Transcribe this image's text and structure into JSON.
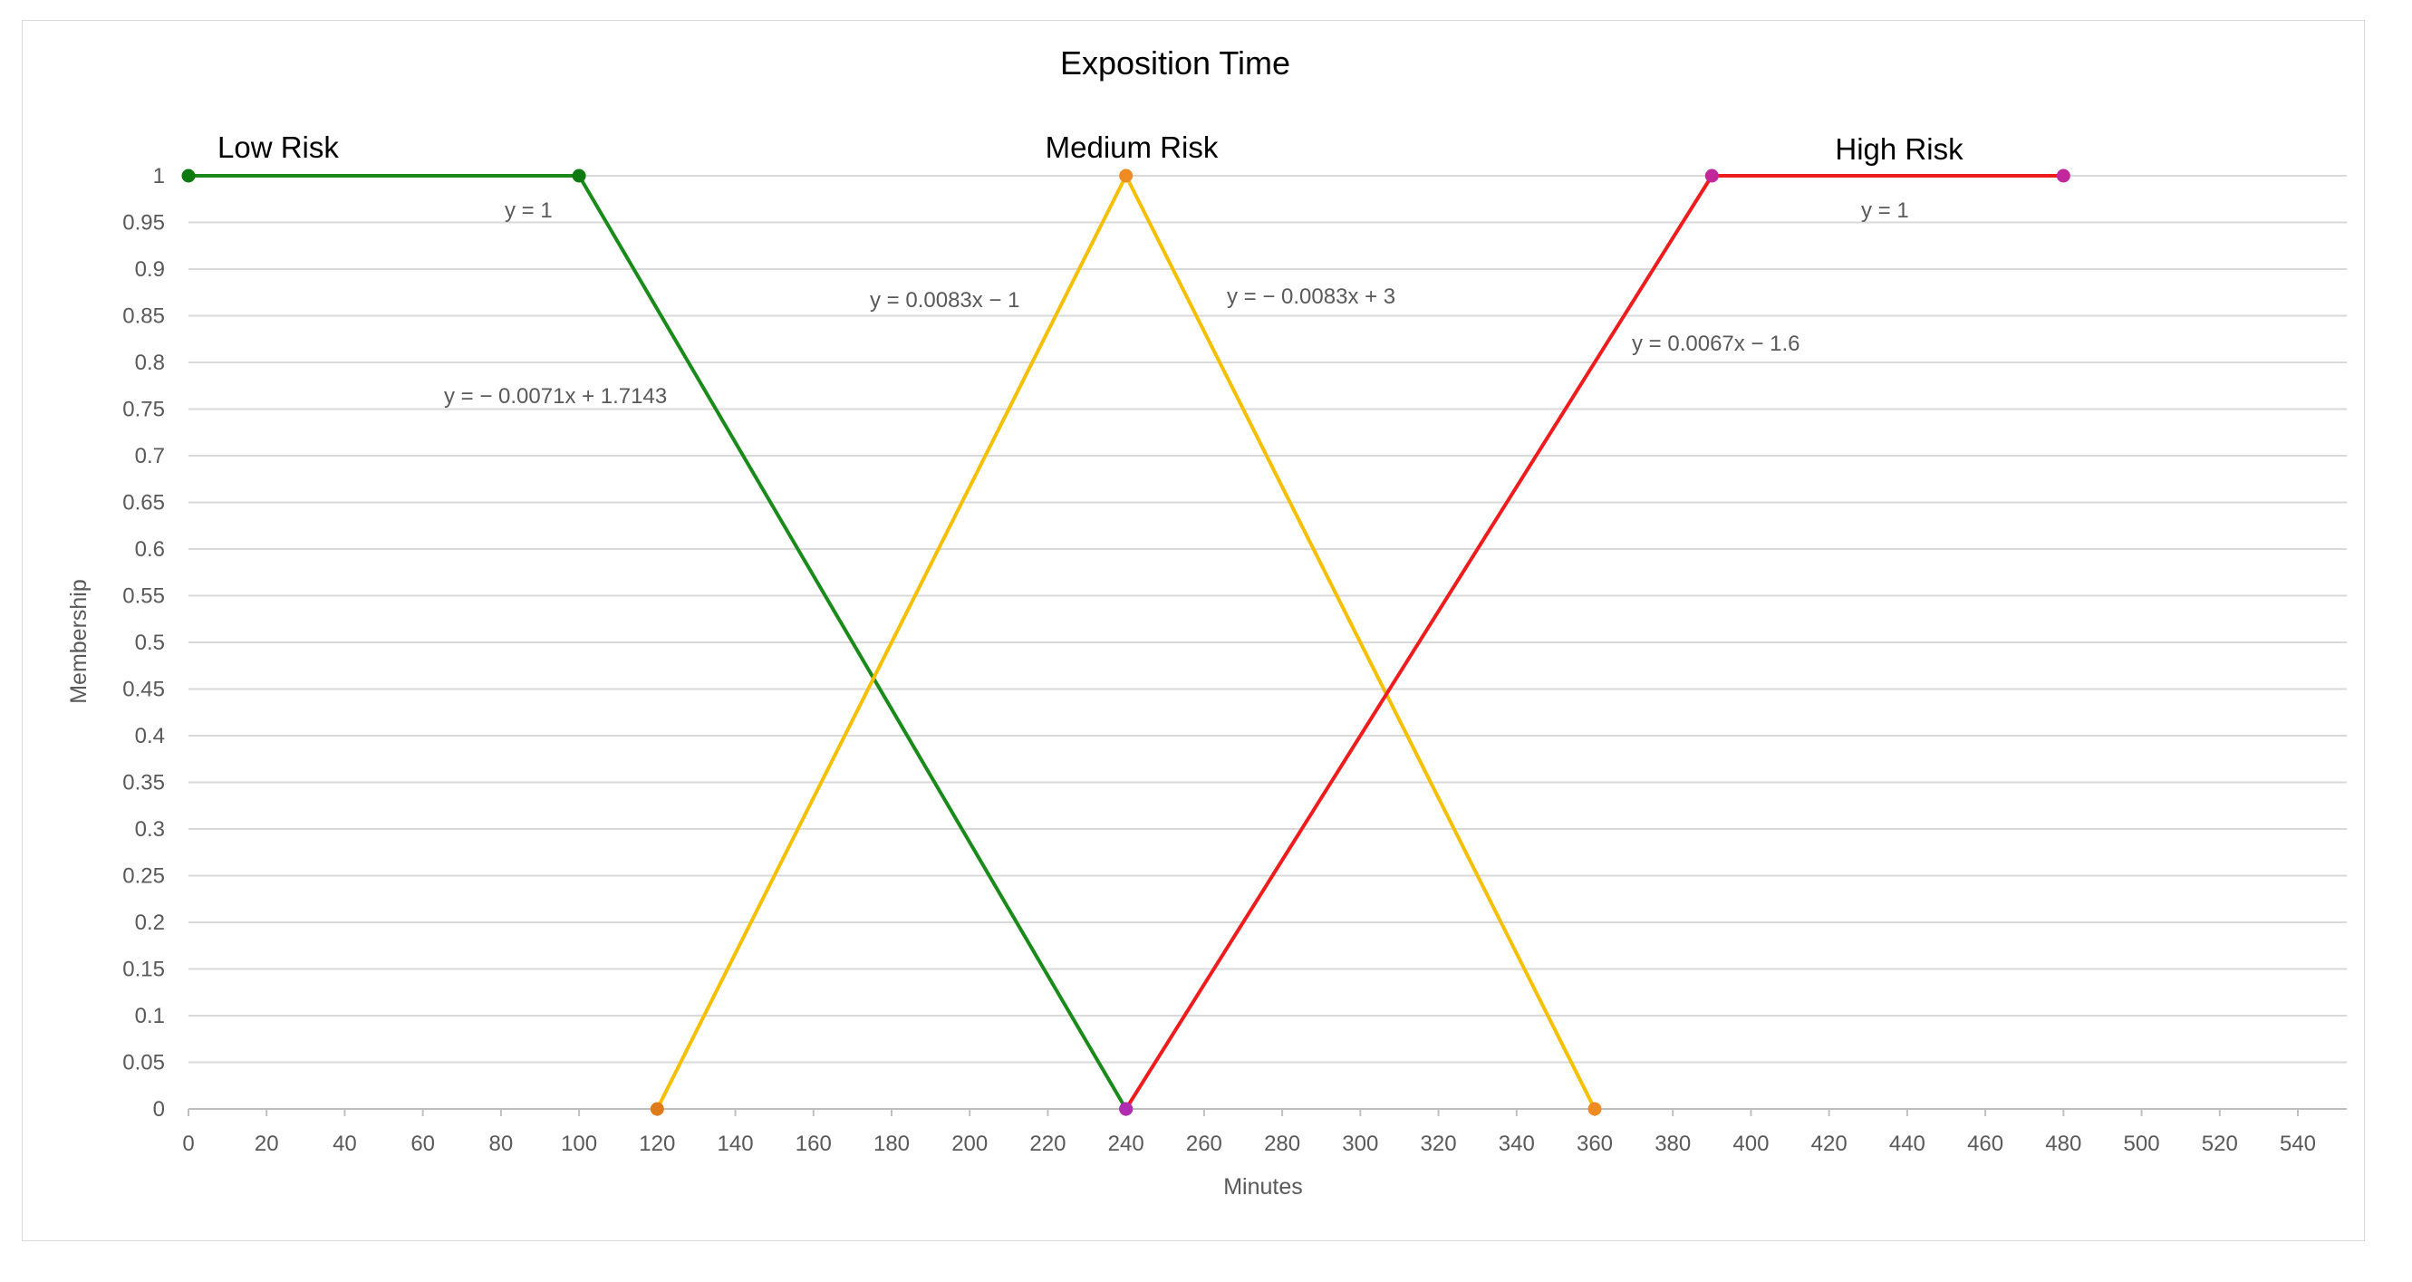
{
  "chart_data": {
    "type": "line",
    "title": "Exposition Time",
    "xlabel": "Minutes",
    "ylabel": "Membership",
    "xlim": [
      0,
      540
    ],
    "ylim": [
      0,
      1
    ],
    "x_ticks": [
      "0",
      "20",
      "40",
      "60",
      "80",
      "100",
      "120",
      "140",
      "160",
      "180",
      "200",
      "220",
      "240",
      "260",
      "280",
      "300",
      "320",
      "340",
      "360",
      "380",
      "400",
      "420",
      "440",
      "460",
      "480",
      "500",
      "520",
      "540"
    ],
    "y_ticks": [
      "0",
      "0.05",
      "0.1",
      "0.15",
      "0.2",
      "0.25",
      "0.3",
      "0.35",
      "0.4",
      "0.45",
      "0.5",
      "0.55",
      "0.6",
      "0.65",
      "0.7",
      "0.75",
      "0.8",
      "0.85",
      "0.9",
      "0.95",
      "1"
    ],
    "grid": "horizontal",
    "series": [
      {
        "name": "Low Risk",
        "color": "#1a8a1a",
        "points": [
          [
            0,
            1
          ],
          [
            100,
            1
          ],
          [
            240,
            0
          ]
        ],
        "marker_colors": [
          "#0f7a0f",
          "#0f7a0f",
          "#b02cb0"
        ],
        "equations": [
          "y = 1",
          "y = − 0.0071x + 1.7143"
        ]
      },
      {
        "name": "Medium Risk",
        "color": "#f5c000",
        "points": [
          [
            120,
            0
          ],
          [
            240,
            1
          ],
          [
            360,
            0
          ]
        ],
        "marker_colors": [
          "#e07a18",
          "#f08a22",
          "#f08a22"
        ],
        "equations": [
          "y = 0.0083x − 1",
          "y = − 0.0083x + 3"
        ]
      },
      {
        "name": "High Risk",
        "color": "#ee1c1c",
        "points": [
          [
            240,
            0
          ],
          [
            390,
            1
          ],
          [
            480,
            1
          ]
        ],
        "marker_colors": [
          "#b02cb0",
          "#c0289c",
          "#c0289c"
        ],
        "equations": [
          "y = 0.0067x − 1.6",
          "y = 1"
        ]
      }
    ]
  }
}
